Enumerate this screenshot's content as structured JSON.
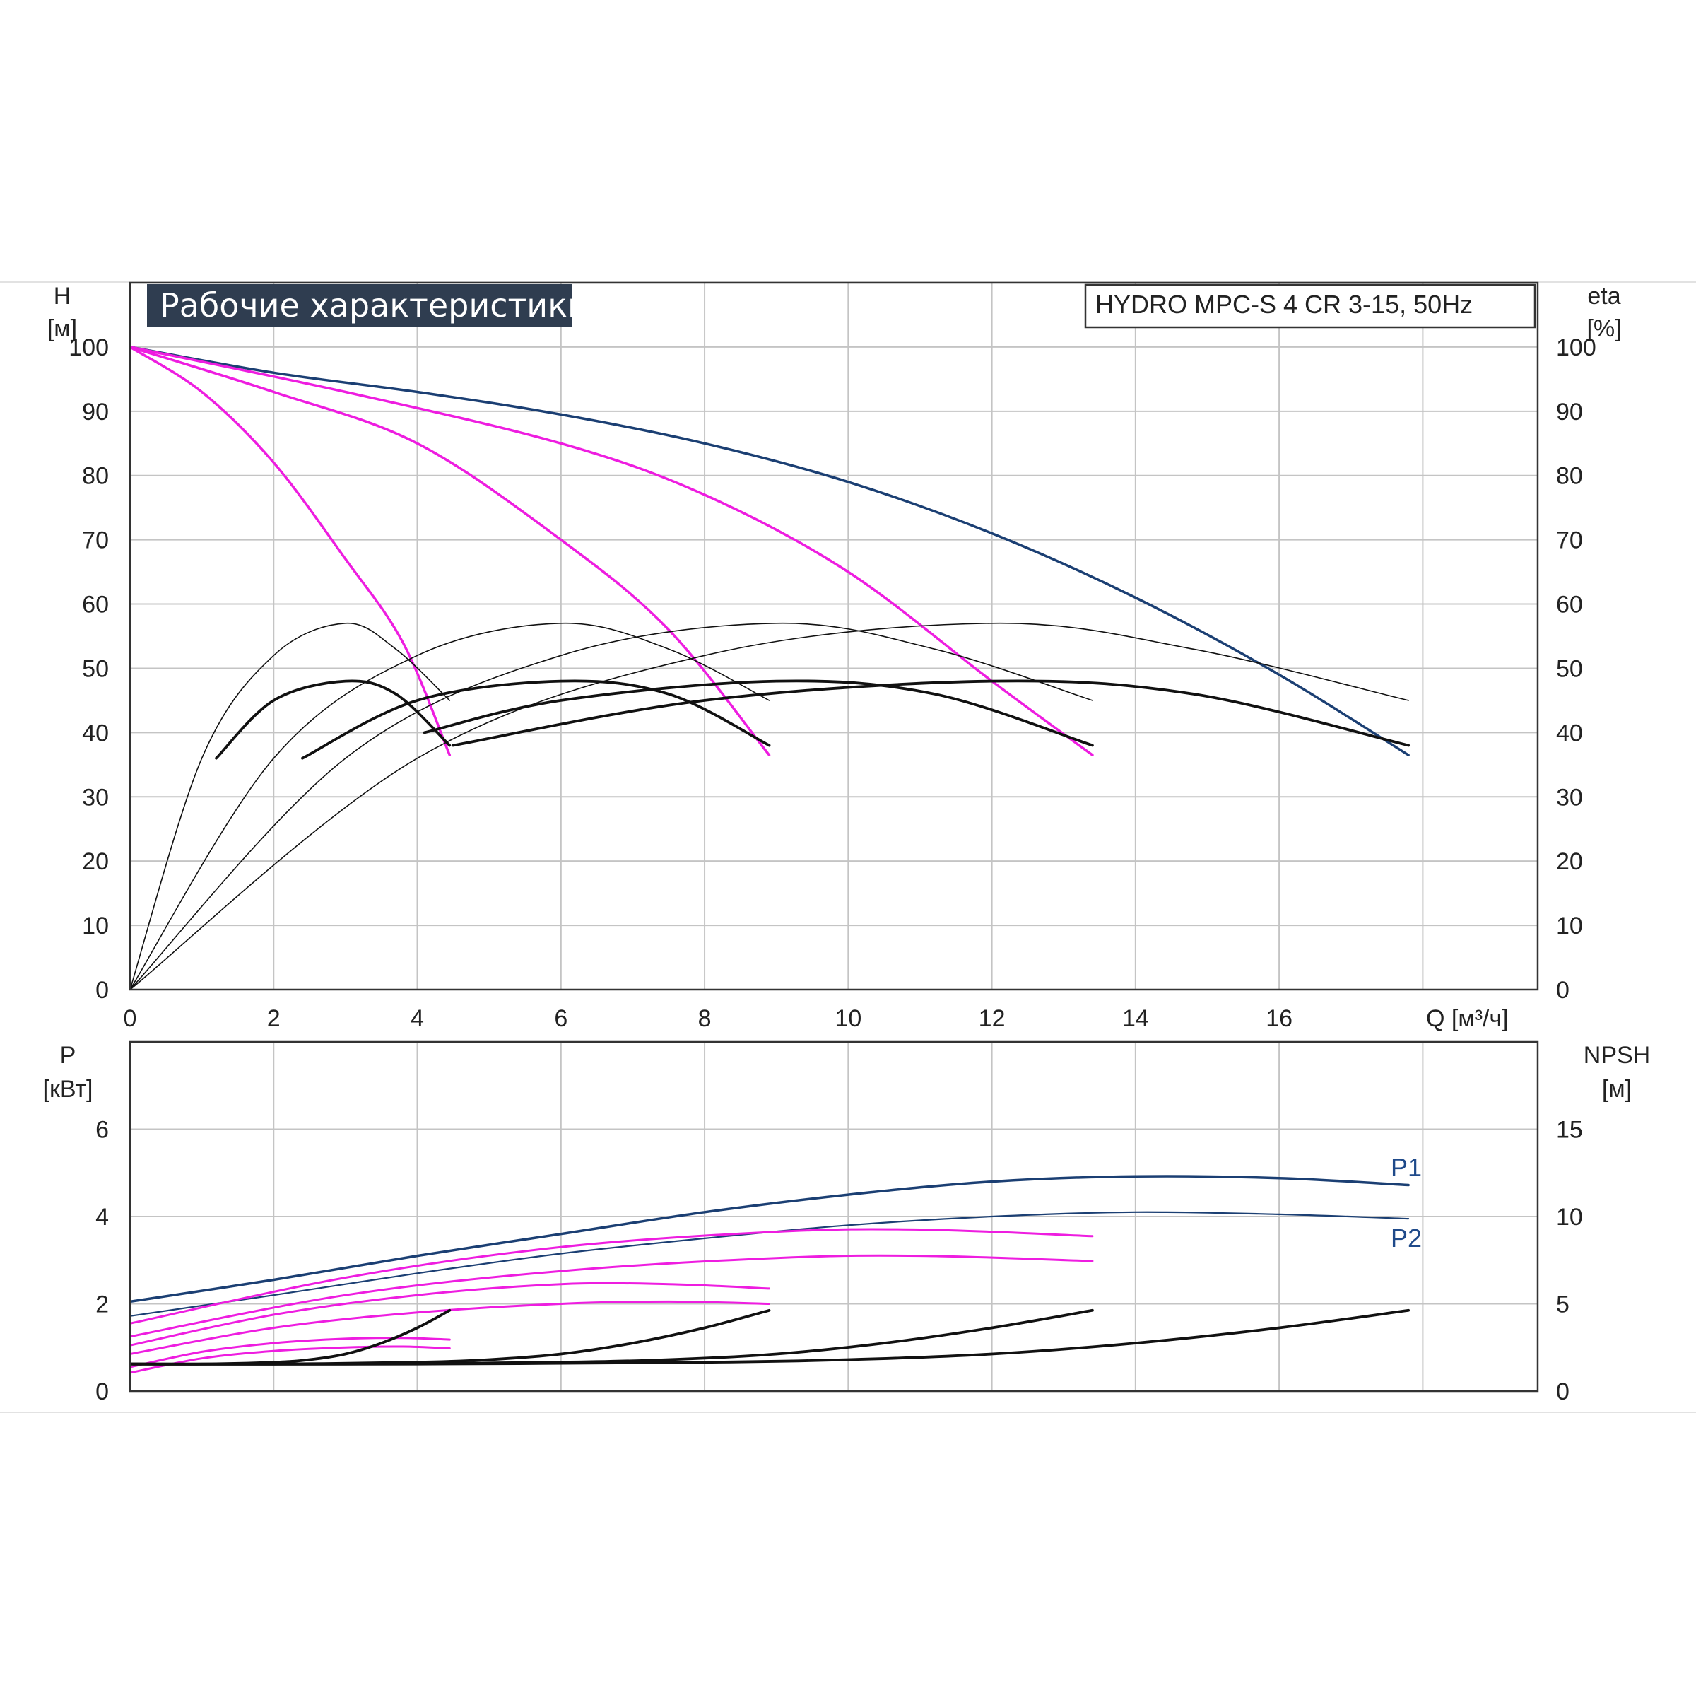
{
  "title": "Рабочие характеристики",
  "model": "HYDRO MPC-S 4 CR 3-15, 50Hz",
  "colors": {
    "blue": "#1b3f73",
    "magenta": "#ee1de0",
    "black": "#111111",
    "title_bg": "#2f3d50",
    "grid": "#c4c4c4"
  },
  "chart_data": [
    {
      "type": "line",
      "name": "head-efficiency",
      "xlabel": "Q [м³/ч]",
      "ylabel_left": {
        "symbol": "H",
        "unit": "[м]"
      },
      "ylabel_right": {
        "symbol": "eta",
        "unit": "[%]"
      },
      "xlim": [
        0,
        19.6
      ],
      "ylim": [
        0,
        110
      ],
      "x_ticks": [
        "0",
        "2",
        "4",
        "6",
        "8",
        "10",
        "12",
        "14",
        "16"
      ],
      "x_tick_values": [
        0,
        2,
        4,
        6,
        8,
        10,
        12,
        14,
        16
      ],
      "y_ticks_left": [
        "0",
        "10",
        "20",
        "30",
        "40",
        "50",
        "60",
        "70",
        "80",
        "90",
        "100"
      ],
      "y_ticks_right": [
        "0",
        "10",
        "20",
        "30",
        "40",
        "50",
        "60",
        "70",
        "80",
        "90",
        "100"
      ],
      "y_tick_values": [
        0,
        10,
        20,
        30,
        40,
        50,
        60,
        70,
        80,
        90,
        100
      ],
      "grid": true,
      "series": [
        {
          "group": "head",
          "color": "blue",
          "width": 3.5,
          "x": [
            0,
            2,
            4,
            6,
            8,
            10,
            12,
            14,
            16,
            17.8
          ],
          "y": [
            100,
            96,
            93,
            89.5,
            85,
            79,
            71,
            61,
            49,
            36.5
          ]
        },
        {
          "group": "head",
          "color": "magenta",
          "width": 3.5,
          "x": [
            0,
            3,
            6,
            8,
            10,
            12,
            13.4
          ],
          "y": [
            100,
            93,
            85,
            77,
            65,
            48,
            36.5
          ]
        },
        {
          "group": "head",
          "color": "magenta",
          "width": 3.5,
          "x": [
            0,
            2,
            4,
            6,
            7.5,
            8.9
          ],
          "y": [
            100,
            93,
            85,
            70,
            56,
            36.5
          ]
        },
        {
          "group": "head",
          "color": "magenta",
          "width": 3.5,
          "x": [
            0,
            1,
            2,
            3,
            3.8,
            4.45
          ],
          "y": [
            100,
            93,
            82,
            67,
            54,
            36.5
          ]
        },
        {
          "group": "eff_thin",
          "color": "black",
          "width": 1.6,
          "x": [
            0,
            1,
            2,
            3,
            3.7,
            4.45
          ],
          "y": [
            0,
            36,
            52,
            57,
            53,
            45
          ]
        },
        {
          "group": "eff_thin",
          "color": "black",
          "width": 1.6,
          "x": [
            0,
            2,
            4,
            6,
            7.5,
            8.9
          ],
          "y": [
            0,
            36,
            52,
            57,
            53,
            45
          ]
        },
        {
          "group": "eff_thin",
          "color": "black",
          "width": 1.6,
          "x": [
            0,
            3,
            6,
            9,
            11.2,
            13.4
          ],
          "y": [
            0,
            36,
            52,
            57,
            53,
            45
          ]
        },
        {
          "group": "eff_thin",
          "color": "black",
          "width": 1.6,
          "x": [
            0,
            4,
            8,
            12,
            14.8,
            17.8
          ],
          "y": [
            0,
            36,
            52,
            57,
            53,
            45
          ]
        },
        {
          "group": "eff_thick",
          "color": "black",
          "width": 3.8,
          "x": [
            1.2,
            2,
            3,
            3.7,
            4.45
          ],
          "y": [
            36,
            45,
            48,
            46,
            38
          ]
        },
        {
          "group": "eff_thick",
          "color": "black",
          "width": 3.8,
          "x": [
            2.4,
            4,
            6,
            7.5,
            8.9
          ],
          "y": [
            36,
            45,
            48,
            46,
            38
          ]
        },
        {
          "group": "eff_thick",
          "color": "black",
          "width": 3.8,
          "x": [
            4.1,
            6,
            9,
            11.2,
            13.4
          ],
          "y": [
            40,
            45,
            48,
            46,
            38
          ]
        },
        {
          "group": "eff_thick",
          "color": "black",
          "width": 3.8,
          "x": [
            4.5,
            8,
            12,
            14.8,
            17.8
          ],
          "y": [
            38,
            45,
            48,
            46,
            38
          ]
        }
      ]
    },
    {
      "type": "line",
      "name": "power-npsh",
      "xlim": [
        0,
        19.6
      ],
      "ylabel_left": {
        "symbol": "P",
        "unit": "[кВт]"
      },
      "ylabel_right": {
        "symbol": "NPSH",
        "unit": "[м]"
      },
      "ylim": [
        0,
        8
      ],
      "y_ticks_left": [
        "0",
        "2",
        "4",
        "6"
      ],
      "y_tick_values_left": [
        0,
        2,
        4,
        6
      ],
      "y_ticks_right": [
        "0",
        "5",
        "10",
        "15"
      ],
      "y_tick_values_right": [
        0,
        5,
        10,
        15
      ],
      "right_axis_scale": 2.5,
      "grid": true,
      "series": [
        {
          "name": "P1",
          "color": "blue",
          "width": 3.5,
          "x": [
            0,
            2,
            4,
            6,
            8,
            10,
            12,
            14,
            16,
            17.8
          ],
          "y": [
            2.05,
            2.55,
            3.1,
            3.6,
            4.1,
            4.5,
            4.8,
            4.92,
            4.88,
            4.72
          ]
        },
        {
          "name": "P2",
          "color": "blue",
          "width": 2.2,
          "x": [
            0,
            2,
            4,
            6,
            8,
            10,
            12,
            14,
            16,
            17.8
          ],
          "y": [
            1.72,
            2.2,
            2.7,
            3.15,
            3.5,
            3.8,
            4.0,
            4.1,
            4.05,
            3.95
          ]
        },
        {
          "color": "magenta",
          "width": 3,
          "x": [
            0,
            3,
            6,
            9,
            11,
            13.4
          ],
          "y": [
            1.55,
            2.6,
            3.3,
            3.65,
            3.7,
            3.55
          ]
        },
        {
          "color": "magenta",
          "width": 3,
          "x": [
            0,
            3,
            6,
            9,
            11,
            13.4
          ],
          "y": [
            1.25,
            2.2,
            2.75,
            3.05,
            3.1,
            2.98
          ]
        },
        {
          "color": "magenta",
          "width": 3,
          "x": [
            0,
            2,
            4,
            6,
            7.5,
            8.9
          ],
          "y": [
            1.05,
            1.75,
            2.2,
            2.45,
            2.45,
            2.35
          ]
        },
        {
          "color": "magenta",
          "width": 3,
          "x": [
            0,
            2,
            4,
            6,
            7.5,
            8.9
          ],
          "y": [
            0.85,
            1.45,
            1.8,
            2.0,
            2.05,
            2.0
          ]
        },
        {
          "color": "magenta",
          "width": 3,
          "x": [
            0,
            1,
            2,
            3,
            3.8,
            4.45
          ],
          "y": [
            0.55,
            0.9,
            1.1,
            1.2,
            1.22,
            1.18
          ]
        },
        {
          "color": "magenta",
          "width": 3,
          "x": [
            0,
            1,
            2,
            3,
            3.8,
            4.45
          ],
          "y": [
            0.42,
            0.75,
            0.92,
            1.0,
            1.02,
            0.98
          ]
        },
        {
          "group": "npsh",
          "color": "black",
          "width": 3.8,
          "x": [
            0,
            1,
            2,
            2.5,
            3,
            3.5,
            4,
            4.45
          ],
          "y": [
            0.62,
            0.62,
            0.66,
            0.72,
            0.85,
            1.1,
            1.45,
            1.85
          ]
        },
        {
          "group": "npsh",
          "color": "black",
          "width": 3.8,
          "x": [
            0,
            2,
            4,
            5,
            6,
            7,
            8,
            8.9
          ],
          "y": [
            0.62,
            0.62,
            0.66,
            0.72,
            0.85,
            1.1,
            1.45,
            1.85
          ]
        },
        {
          "group": "npsh",
          "color": "black",
          "width": 3.8,
          "x": [
            0,
            3,
            6,
            7.5,
            9,
            10.5,
            12,
            13.4
          ],
          "y": [
            0.62,
            0.62,
            0.66,
            0.72,
            0.85,
            1.1,
            1.45,
            1.85
          ]
        },
        {
          "group": "npsh",
          "color": "black",
          "width": 3.8,
          "x": [
            0,
            4,
            8,
            10,
            12,
            14,
            16,
            17.8
          ],
          "y": [
            0.62,
            0.62,
            0.66,
            0.72,
            0.85,
            1.1,
            1.45,
            1.85
          ]
        }
      ]
    }
  ]
}
